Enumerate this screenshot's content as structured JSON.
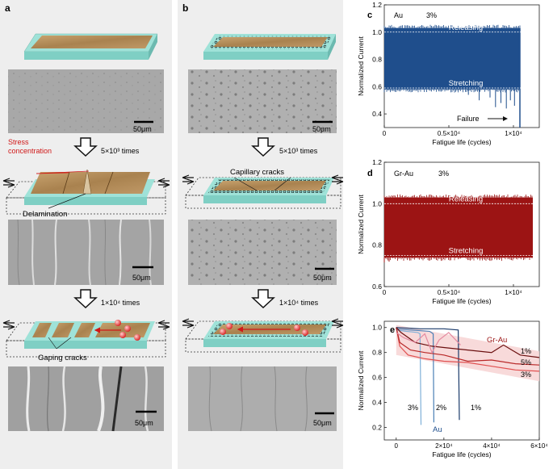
{
  "panels": {
    "a": {
      "letter": "a"
    },
    "b": {
      "letter": "b"
    },
    "c": {
      "letter": "c"
    },
    "d": {
      "letter": "d"
    },
    "e": {
      "letter": "e"
    }
  },
  "scale_bar": "50μm",
  "steps": {
    "first": "5×10³ times",
    "second": "1×10⁴ times"
  },
  "annotations_a": {
    "stress": "Stress",
    "concentration": "concentration",
    "delamination": "Delamination",
    "gaping": "Gaping cracks"
  },
  "annotations_b": {
    "capillary": "Capillary cracks"
  },
  "colors": {
    "substrate": "#9fe2d8",
    "film": "#b9925f",
    "panel_bg": "#efefef",
    "au_blue": "#1f4e8c",
    "grau_red": "#9c1414",
    "band_pink": "#f7d3d3",
    "arrow_red": "#d01818"
  },
  "chart_data": [
    {
      "id": "c",
      "type": "line",
      "title": "Au 3%",
      "label_material": "Au",
      "label_strain": "3%",
      "xlabel": "Fatigue life (cycles)",
      "ylabel": "Normalized Current",
      "xlim": [
        0,
        12000
      ],
      "ylim": [
        0.3,
        1.2
      ],
      "yticks": [
        "0.4",
        "0.6",
        "0.8",
        "1.0",
        "1.2"
      ],
      "xticks": [
        "0",
        "0.5×10⁴",
        "1×10⁴"
      ],
      "series": [
        {
          "name": "Au",
          "x_end": 10500,
          "upper": 1.03,
          "lower": 0.58
        }
      ],
      "reference_lines": [
        {
          "name": "Releasing",
          "y": 1.0
        },
        {
          "name": "Stretching",
          "y": 0.59
        }
      ],
      "annotation": "Failure"
    },
    {
      "id": "d",
      "type": "line",
      "title": "Gr-Au 3%",
      "label_material": "Gr-Au",
      "label_strain": "3%",
      "xlabel": "Fatigue life (cycles)",
      "ylabel": "Normalized Current",
      "xlim": [
        0,
        12000
      ],
      "ylim": [
        0.6,
        1.2
      ],
      "yticks": [
        "0.6",
        "0.8",
        "1.0",
        "1.2"
      ],
      "xticks": [
        "0",
        "0.5×10⁴",
        "1×10⁴"
      ],
      "series": [
        {
          "name": "Gr-Au",
          "x_end": 11500,
          "upper": 1.03,
          "lower": 0.74
        }
      ],
      "reference_lines": [
        {
          "name": "Releasing",
          "y": 1.0
        },
        {
          "name": "Stretching",
          "y": 0.75
        }
      ]
    },
    {
      "id": "e",
      "type": "line",
      "xlabel": "Fatigue life (cycles)",
      "ylabel": "Normalized Current",
      "xlim": [
        -5000,
        60000
      ],
      "ylim": [
        0.1,
        1.05
      ],
      "yticks": [
        "0.2",
        "0.4",
        "0.6",
        "0.8",
        "1.0"
      ],
      "xticks": [
        "0",
        "2×10⁴",
        "4×10⁴",
        "6×10⁴"
      ],
      "group_labels": [
        "Gr-Au",
        "Au"
      ],
      "series": [
        {
          "name": "Au 3%",
          "group": "Au",
          "strain": "3%",
          "color": "#7fb0d8",
          "x": [
            0,
            4000,
            9000,
            10000,
            10400
          ],
          "y": [
            0.98,
            0.97,
            0.96,
            0.95,
            0.22
          ]
        },
        {
          "name": "Au 2%",
          "group": "Au",
          "strain": "2%",
          "color": "#4a7fb5",
          "x": [
            0,
            6000,
            14000,
            15500,
            15800
          ],
          "y": [
            0.99,
            0.98,
            0.97,
            0.95,
            0.24
          ]
        },
        {
          "name": "Au 1%",
          "group": "Au",
          "strain": "1%",
          "color": "#1a3a6a",
          "x": [
            0,
            10000,
            20000,
            26000,
            26500
          ],
          "y": [
            1.0,
            0.99,
            0.99,
            0.98,
            0.26
          ]
        },
        {
          "name": "Gr-Au 3%",
          "group": "Gr-Au",
          "strain": "3%",
          "color": "#e05050",
          "x": [
            0,
            1500,
            5000,
            12000,
            20000,
            30000,
            40000,
            50000,
            60000
          ],
          "y": [
            1.0,
            0.85,
            0.78,
            0.75,
            0.73,
            0.72,
            0.69,
            0.66,
            0.65
          ]
        },
        {
          "name": "Gr-Au 5%",
          "group": "Gr-Au",
          "strain": "5%",
          "color": "#b82828",
          "x": [
            0,
            1500,
            6000,
            12000,
            20000,
            30000,
            40000,
            50000,
            60000
          ],
          "y": [
            1.0,
            0.88,
            0.82,
            0.8,
            0.78,
            0.73,
            0.74,
            0.71,
            0.7
          ]
        },
        {
          "name": "Gr-Au 1%",
          "group": "Gr-Au",
          "strain": "1%",
          "color": "#6b1010",
          "x": [
            0,
            2000,
            8000,
            15000,
            20000,
            30000,
            40000,
            45000,
            52000,
            60000
          ],
          "y": [
            1.0,
            0.96,
            0.88,
            0.85,
            0.84,
            0.82,
            0.8,
            0.86,
            0.78,
            0.76
          ]
        },
        {
          "name": "Gr-Au 1% pink",
          "group": "Gr-Au",
          "strain": "",
          "color": "#e48aa0",
          "x": [
            0,
            3000,
            8000,
            12000,
            15000,
            18000,
            22000,
            27000
          ],
          "y": [
            0.96,
            0.92,
            0.88,
            0.95,
            0.8,
            0.9,
            0.96,
            0.86
          ]
        }
      ],
      "band": {
        "x": [
          0,
          60000
        ],
        "upper": [
          1.02,
          0.81
        ],
        "lower": [
          0.78,
          0.57
        ]
      }
    }
  ]
}
